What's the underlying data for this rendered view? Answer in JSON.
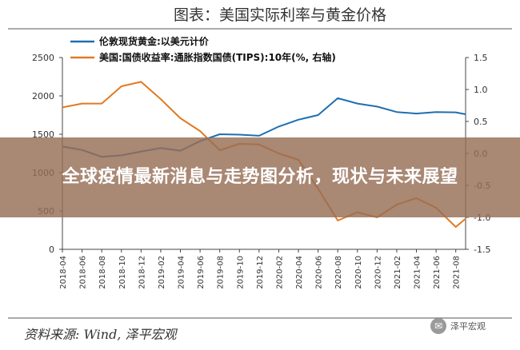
{
  "chart_data": {
    "type": "line",
    "title": "图表：美国实际利率与黄金价格",
    "x": [
      "2018-04",
      "2018-06",
      "2018-08",
      "2018-10",
      "2018-12",
      "2019-02",
      "2019-04",
      "2019-06",
      "2019-08",
      "2019-10",
      "2019-12",
      "2020-02",
      "2020-04",
      "2020-06",
      "2020-08",
      "2020-10",
      "2020-12",
      "2021-02",
      "2021-04",
      "2021-06",
      "2021-08",
      "2021-09"
    ],
    "x_tick_labels": [
      "2018-04",
      "2018-06",
      "2018-08",
      "2018-10",
      "2018-12",
      "2019-02",
      "2019-04",
      "2019-06",
      "2019-08",
      "2019-10",
      "2019-12",
      "2020-02",
      "2020-04",
      "2020-06",
      "2020-08",
      "2020-10",
      "2020-12",
      "2021-02",
      "2021-04",
      "2021-06",
      "2021-08"
    ],
    "y_left": {
      "ylim": [
        0,
        2500
      ],
      "ticks": [
        0,
        500,
        1000,
        1500,
        2000,
        2500
      ]
    },
    "y_right": {
      "ylim": [
        -1.5,
        1.5
      ],
      "ticks": [
        -1.5,
        -1.0,
        -0.5,
        0.0,
        0.5,
        1.0,
        1.5
      ]
    },
    "series": [
      {
        "name": "伦敦现货黄金:以美元计价",
        "axis": "left",
        "color": "#1f6fb0",
        "values": [
          1340,
          1295,
          1205,
          1225,
          1275,
          1320,
          1285,
          1410,
          1500,
          1495,
          1480,
          1600,
          1690,
          1750,
          1970,
          1900,
          1860,
          1790,
          1770,
          1790,
          1785,
          1760
        ]
      },
      {
        "name": "美国:国债收益率:通胀指数国债(TIPS):10年(%, 右轴)",
        "axis": "right",
        "color": "#e07b22",
        "values": [
          0.72,
          0.78,
          0.78,
          1.05,
          1.12,
          0.85,
          0.55,
          0.35,
          0.05,
          0.15,
          0.14,
          0.0,
          -0.1,
          -0.55,
          -1.05,
          -0.92,
          -1.0,
          -0.8,
          -0.7,
          -0.85,
          -1.15,
          -1.02
        ]
      }
    ],
    "grid": false,
    "legend_placement": "top"
  },
  "banner": {
    "text": "全球疫情最新消息与走势图分析，现状与未来展望"
  },
  "source": {
    "text": "资料来源: Wind, 泽平宏观"
  },
  "watermark": {
    "text": "泽平宏观",
    "icon": "wechat-icon"
  }
}
